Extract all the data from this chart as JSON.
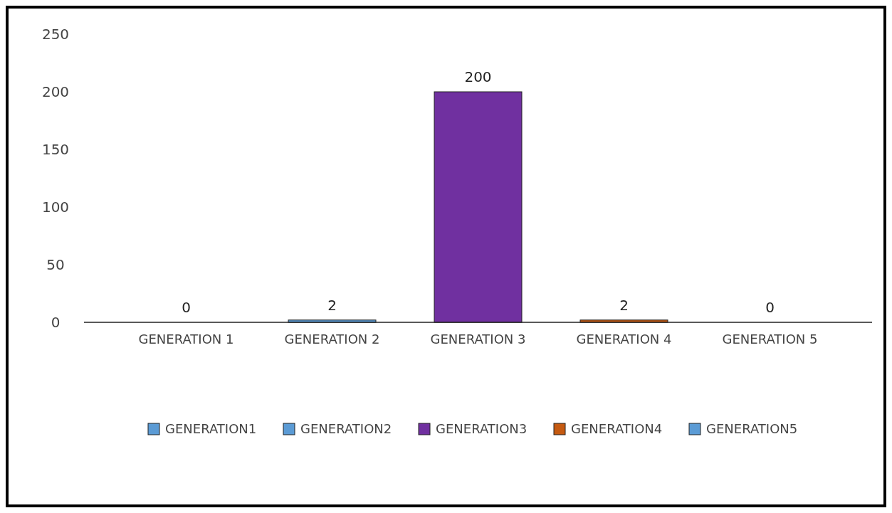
{
  "chart_data": {
    "type": "bar",
    "stacked": true,
    "categories": [
      "GENERATION 1",
      "GENERATION 2",
      "GENERATION 3",
      "GENERATION 4",
      "GENERATION 5"
    ],
    "series": [
      {
        "name": "GENERATION1",
        "color": "#5b9bd5",
        "values": [
          0,
          null,
          null,
          null,
          null
        ]
      },
      {
        "name": "GENERATION2",
        "color": "#5b9bd5",
        "values": [
          null,
          2,
          null,
          null,
          null
        ]
      },
      {
        "name": "GENERATION3",
        "color": "#7030a0",
        "values": [
          null,
          null,
          200,
          null,
          null
        ]
      },
      {
        "name": "GENERATION4",
        "color": "#c55a11",
        "values": [
          null,
          null,
          null,
          2,
          null
        ]
      },
      {
        "name": "GENERATION5",
        "color": "#5b9bd5",
        "values": [
          null,
          null,
          null,
          null,
          0
        ]
      }
    ],
    "ylim": [
      0,
      250
    ],
    "yticks": [
      0,
      50,
      100,
      150,
      200,
      250
    ],
    "data_labels": true,
    "legend": "bottom"
  }
}
